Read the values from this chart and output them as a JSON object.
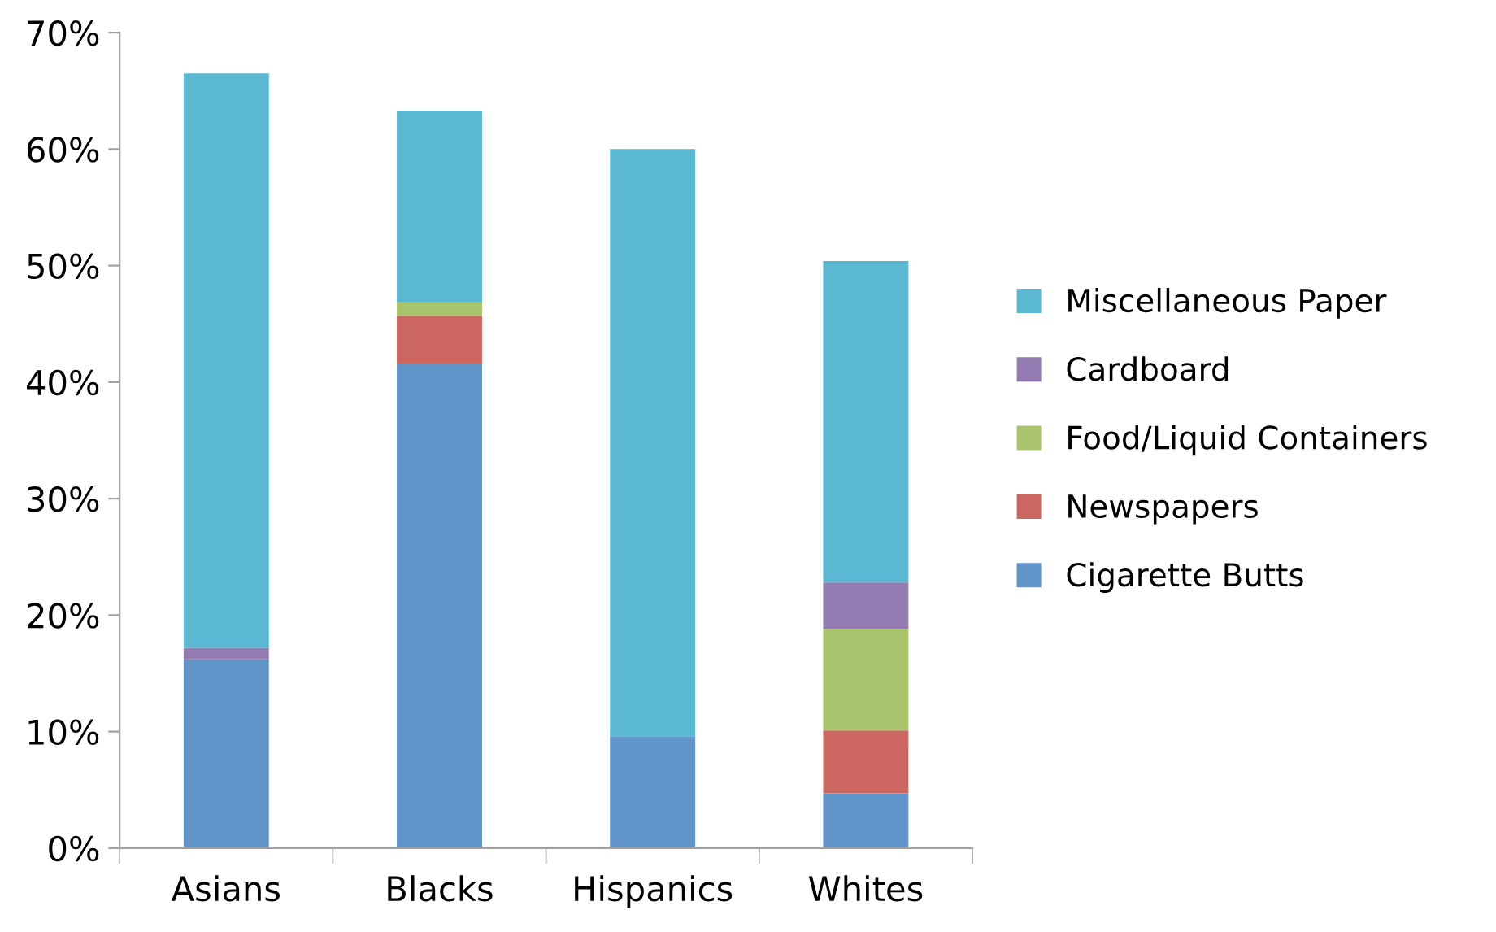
{
  "chart_data": {
    "type": "bar",
    "stacked": true,
    "legend": "right",
    "grid": false,
    "categories": [
      "Asians",
      "Blacks",
      "Hispanics",
      "Whites"
    ],
    "series": [
      {
        "name": "Cigarette Butts",
        "color": "#6194c8",
        "values": [
          16.2,
          41.6,
          9.6,
          4.7
        ]
      },
      {
        "name": "Newspapers",
        "color": "#cc6660",
        "values": [
          0,
          4.1,
          0,
          5.4
        ]
      },
      {
        "name": "Food/Liquid Containers",
        "color": "#a9c46d",
        "values": [
          0,
          1.2,
          0,
          8.7
        ]
      },
      {
        "name": "Cardboard",
        "color": "#937bb2",
        "values": [
          1.0,
          0,
          0,
          4.0
        ]
      },
      {
        "name": "Miscellaneous Paper",
        "color": "#5bb8d2",
        "values": [
          49.3,
          16.4,
          50.4,
          27.6
        ]
      }
    ],
    "ylim": [
      0,
      70
    ],
    "yticks": [
      {
        "value": 0,
        "label": "0%"
      },
      {
        "value": 10,
        "label": "10%"
      },
      {
        "value": 20,
        "label": "20%"
      },
      {
        "value": 30,
        "label": "30%"
      },
      {
        "value": 40,
        "label": "40%"
      },
      {
        "value": 50,
        "label": "50%"
      },
      {
        "value": 60,
        "label": "60%"
      },
      {
        "value": 70,
        "label": "70%"
      }
    ]
  }
}
